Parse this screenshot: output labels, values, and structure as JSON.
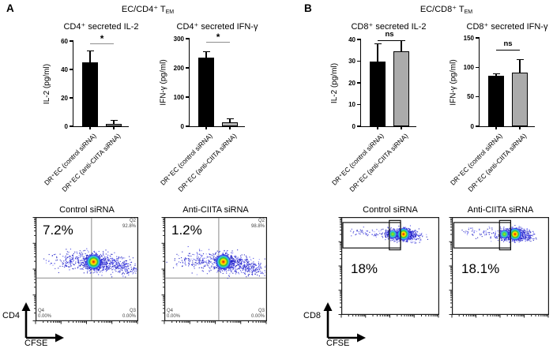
{
  "panels": [
    {
      "label": "A",
      "header_pre": "EC/CD4⁺ T",
      "header_sub": "EM",
      "flow_ylabel": "CD4",
      "flow_xlabel": "CFSE"
    },
    {
      "label": "B",
      "header_pre": "EC/CD8⁺ T",
      "header_sub": "EM",
      "flow_ylabel": "CD8",
      "flow_xlabel": "CFSE"
    }
  ],
  "chart_data": [
    {
      "type": "bar",
      "panel": "A",
      "title": "CD4⁺ secreted IL-2",
      "ylabel": "IL-2 (pg/ml)",
      "ylim": [
        0,
        60
      ],
      "yticks": [
        0,
        20,
        40,
        60
      ],
      "categories": [
        "DR⁺EC (control siRNA)",
        "DR⁺EC (anti-CIITA siRNA)"
      ],
      "values": [
        45,
        1.5
      ],
      "errors_up": [
        8,
        2.5
      ],
      "bar_colors": [
        "#000000",
        "#b3b3b3"
      ],
      "significance": "*"
    },
    {
      "type": "bar",
      "panel": "A",
      "title": "CD4⁺ secreted IFN-γ",
      "ylabel": "IFN-γ (pg/ml)",
      "ylim": [
        0,
        300
      ],
      "yticks": [
        0,
        100,
        200,
        300
      ],
      "categories": [
        "DR⁺EC (control siRNA)",
        "DR⁺EC (anti-CIITA siRNA)"
      ],
      "values": [
        235,
        13
      ],
      "errors_up": [
        20,
        12
      ],
      "bar_colors": [
        "#000000",
        "#b3b3b3"
      ],
      "significance": "*"
    },
    {
      "type": "bar",
      "panel": "B",
      "title": "CD8⁺ secreted IL-2",
      "ylabel": "IL-2 (pg/ml)",
      "ylim": [
        0,
        40
      ],
      "yticks": [
        0,
        10,
        20,
        30,
        40
      ],
      "categories": [
        "DR⁺EC (control siRNA)",
        "DR⁺EC (anti-CIITA siRNA)"
      ],
      "values": [
        30,
        34.5
      ],
      "errors_up": [
        8,
        5
      ],
      "bar_colors": [
        "#000000",
        "#ababab"
      ],
      "significance": "ns"
    },
    {
      "type": "bar",
      "panel": "B",
      "title": "CD8⁺ secreted IFN-γ",
      "ylabel": "IFN-γ (pg/ml)",
      "ylim": [
        0,
        150
      ],
      "yticks": [
        0,
        50,
        100,
        150
      ],
      "categories": [
        "DR⁺EC (control siRNA)",
        "DR⁺EC (anti-CIITA siRNA)"
      ],
      "values": [
        86,
        91
      ],
      "errors_up": [
        3,
        22
      ],
      "bar_colors": [
        "#000000",
        "#ababab"
      ],
      "significance": "ns"
    },
    {
      "type": "scatter",
      "subtype": "flow-density",
      "panel": "A",
      "title": "Control siRNA",
      "percent": "7.2%",
      "style": "quadrant",
      "cross": {
        "x": 0.545,
        "y": 0.585
      },
      "quadrant_labels": [
        {
          "name": "Q2",
          "value": "92.8%",
          "pos": "tr"
        },
        {
          "name": "Q4",
          "value": "0.00%",
          "pos": "bl"
        },
        {
          "name": "Q3",
          "value": "0.00%",
          "pos": "br"
        }
      ],
      "dots": {
        "seed": 11,
        "blobs": [
          {
            "x": 0.565,
            "y": 0.43,
            "rx": 0.045,
            "ry": 0.04,
            "n": 420
          },
          {
            "x": 0.66,
            "y": 0.44,
            "rx": 0.09,
            "ry": 0.045,
            "n": 260
          },
          {
            "x": 0.8,
            "y": 0.465,
            "rx": 0.07,
            "ry": 0.04,
            "n": 130
          },
          {
            "x": 0.9,
            "y": 0.5,
            "rx": 0.05,
            "ry": 0.035,
            "n": 70
          },
          {
            "x": 0.44,
            "y": 0.42,
            "rx": 0.09,
            "ry": 0.05,
            "n": 170
          },
          {
            "x": 0.28,
            "y": 0.41,
            "rx": 0.09,
            "ry": 0.04,
            "n": 80
          }
        ],
        "glows": [
          {
            "x": 0.565,
            "y": 0.43,
            "r": 10,
            "kind": "hot"
          }
        ]
      }
    },
    {
      "type": "scatter",
      "subtype": "flow-density",
      "panel": "A",
      "title": "Anti-CIITA siRNA",
      "percent": "1.2%",
      "style": "quadrant",
      "cross": {
        "x": 0.53,
        "y": 0.585
      },
      "quadrant_labels": [
        {
          "name": "Q2",
          "value": "98.8%",
          "pos": "tr"
        },
        {
          "name": "Q4",
          "value": "0.00%",
          "pos": "bl"
        },
        {
          "name": "Q3",
          "value": "0.00%",
          "pos": "br"
        }
      ],
      "dots": {
        "seed": 47,
        "blobs": [
          {
            "x": 0.575,
            "y": 0.43,
            "rx": 0.045,
            "ry": 0.04,
            "n": 420
          },
          {
            "x": 0.67,
            "y": 0.44,
            "rx": 0.09,
            "ry": 0.045,
            "n": 260
          },
          {
            "x": 0.8,
            "y": 0.465,
            "rx": 0.07,
            "ry": 0.04,
            "n": 120
          },
          {
            "x": 0.9,
            "y": 0.5,
            "rx": 0.05,
            "ry": 0.035,
            "n": 60
          },
          {
            "x": 0.42,
            "y": 0.42,
            "rx": 0.1,
            "ry": 0.05,
            "n": 150
          },
          {
            "x": 0.24,
            "y": 0.41,
            "rx": 0.09,
            "ry": 0.04,
            "n": 70
          }
        ],
        "glows": [
          {
            "x": 0.575,
            "y": 0.43,
            "r": 10,
            "kind": "hot"
          }
        ]
      }
    },
    {
      "type": "scatter",
      "subtype": "flow-density",
      "panel": "B",
      "title": "Control siRNA",
      "percent": "18%",
      "style": "gate",
      "gates": [
        [
          0.016,
          0.056,
          0.589,
          0.26
        ],
        [
          0.49,
          0.035,
          0.115,
          0.3
        ]
      ],
      "quadrant_labels": [],
      "dots": {
        "seed": 23,
        "blobs": [
          {
            "x": 0.635,
            "y": 0.175,
            "rx": 0.05,
            "ry": 0.03,
            "n": 480
          },
          {
            "x": 0.53,
            "y": 0.175,
            "rx": 0.045,
            "ry": 0.028,
            "n": 230
          },
          {
            "x": 0.73,
            "y": 0.185,
            "rx": 0.055,
            "ry": 0.032,
            "n": 130
          },
          {
            "x": 0.38,
            "y": 0.16,
            "rx": 0.1,
            "ry": 0.028,
            "n": 55
          },
          {
            "x": 0.18,
            "y": 0.15,
            "rx": 0.07,
            "ry": 0.022,
            "n": 22
          }
        ],
        "glows": [
          {
            "x": 0.635,
            "y": 0.175,
            "r": 8.5,
            "kind": "hot"
          },
          {
            "x": 0.525,
            "y": 0.175,
            "r": 6,
            "kind": "green"
          }
        ]
      }
    },
    {
      "type": "scatter",
      "subtype": "flow-density",
      "panel": "B",
      "title": "Anti-CIITA siRNA",
      "percent": "18.1%",
      "style": "gate",
      "gates": [
        [
          0.02,
          0.056,
          0.585,
          0.26
        ],
        [
          0.49,
          0.035,
          0.115,
          0.3
        ]
      ],
      "quadrant_labels": [],
      "dots": {
        "seed": 91,
        "blobs": [
          {
            "x": 0.65,
            "y": 0.175,
            "rx": 0.05,
            "ry": 0.03,
            "n": 480
          },
          {
            "x": 0.545,
            "y": 0.175,
            "rx": 0.045,
            "ry": 0.028,
            "n": 220
          },
          {
            "x": 0.75,
            "y": 0.185,
            "rx": 0.055,
            "ry": 0.032,
            "n": 130
          },
          {
            "x": 0.38,
            "y": 0.16,
            "rx": 0.1,
            "ry": 0.028,
            "n": 55
          },
          {
            "x": 0.17,
            "y": 0.15,
            "rx": 0.07,
            "ry": 0.022,
            "n": 20
          }
        ],
        "glows": [
          {
            "x": 0.65,
            "y": 0.175,
            "r": 8.5,
            "kind": "hot"
          },
          {
            "x": 0.54,
            "y": 0.175,
            "r": 6,
            "kind": "green"
          }
        ]
      }
    }
  ]
}
